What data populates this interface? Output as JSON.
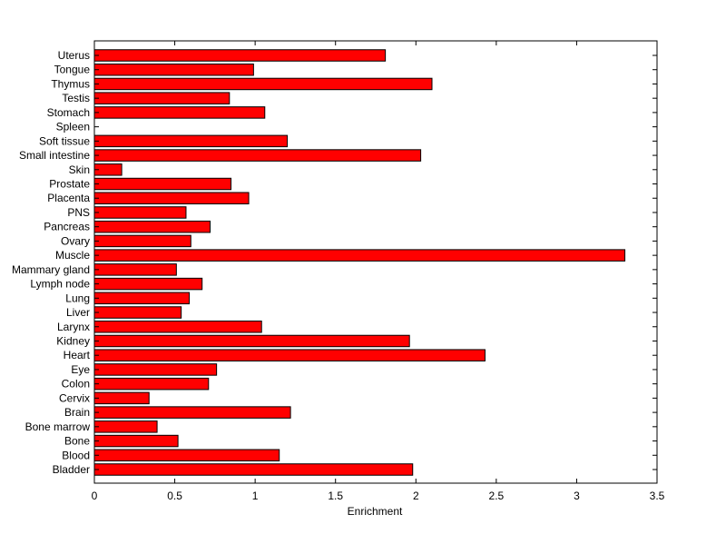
{
  "chart_data": {
    "type": "bar",
    "orientation": "horizontal",
    "categories": [
      "Bladder",
      "Blood",
      "Bone",
      "Bone marrow",
      "Brain",
      "Cervix",
      "Colon",
      "Eye",
      "Heart",
      "Kidney",
      "Larynx",
      "Liver",
      "Lung",
      "Lymph node",
      "Mammary gland",
      "Muscle",
      "Ovary",
      "Pancreas",
      "PNS",
      "Placenta",
      "Prostate",
      "Skin",
      "Small intestine",
      "Soft tissue",
      "Spleen",
      "Stomach",
      "Testis",
      "Thymus",
      "Tongue",
      "Uterus"
    ],
    "values": [
      1.98,
      1.15,
      0.52,
      0.39,
      1.22,
      0.34,
      0.71,
      0.76,
      2.43,
      1.96,
      1.04,
      0.54,
      0.59,
      0.67,
      0.51,
      3.3,
      0.6,
      0.72,
      0.57,
      0.96,
      0.85,
      0.17,
      2.03,
      1.2,
      0.0,
      1.06,
      0.84,
      2.1,
      0.99,
      1.81
    ],
    "title": "",
    "xlabel": "Enrichment",
    "ylabel": "",
    "xlim": [
      0,
      3.5
    ],
    "xticks": [
      "0",
      "0.5",
      "1",
      "1.5",
      "2",
      "2.5",
      "3",
      "3.5"
    ],
    "grid": false,
    "legend": "none",
    "bar_color": "#ff0000",
    "edge_color": "#000000"
  }
}
